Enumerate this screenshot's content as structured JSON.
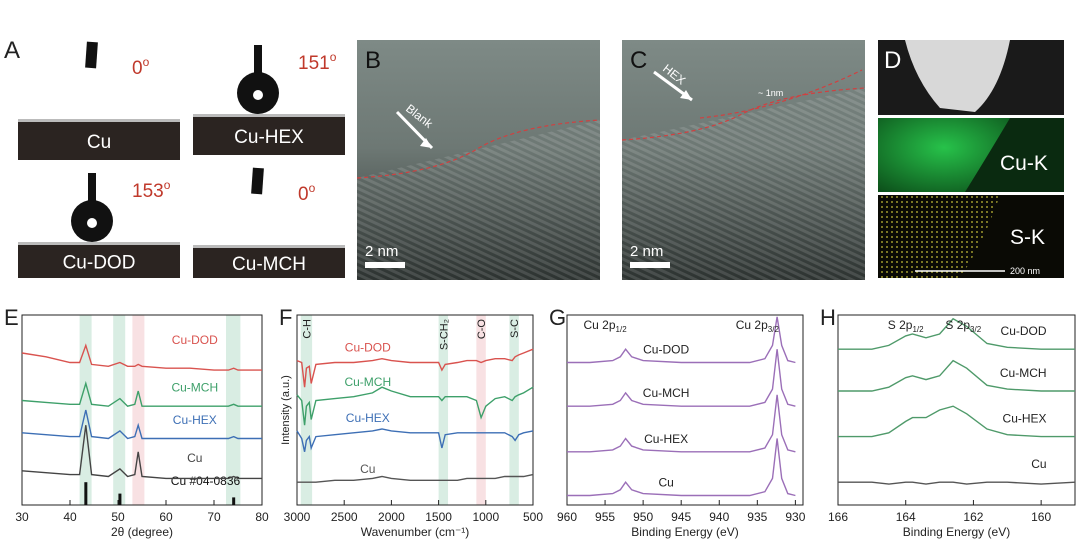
{
  "panels": {
    "A": {
      "letter": "A",
      "samples": [
        {
          "name": "Cu",
          "angle": "0",
          "unit": "o"
        },
        {
          "name": "Cu-HEX",
          "angle": "151",
          "unit": "o"
        },
        {
          "name": "Cu-DOD",
          "angle": "153",
          "unit": "o"
        },
        {
          "name": "Cu-MCH",
          "angle": "0",
          "unit": "o"
        }
      ]
    },
    "B": {
      "letter": "B",
      "arrow_label": "Blank",
      "scale_bar": "2 nm"
    },
    "C": {
      "letter": "C",
      "arrow_label": "HEX",
      "thickness": "~ 1nm",
      "scale_bar": "2 nm"
    },
    "D": {
      "letter": "D",
      "maps": [
        "Cu-K",
        "S-K"
      ],
      "scale_bar": "200 nm"
    }
  },
  "chart_data": [
    {
      "type": "line",
      "letter": "E",
      "x_label": "2θ (degree)",
      "xlim": [
        30,
        80
      ],
      "xticks": [
        30,
        40,
        50,
        60,
        70,
        80
      ],
      "ylim": [
        0,
        100
      ],
      "x": [
        30,
        35,
        40,
        42,
        43.3,
        44.5,
        48,
        50.4,
        52,
        53.5,
        54.2,
        55,
        60,
        65,
        70,
        73,
        74.1,
        75,
        80
      ],
      "series": [
        {
          "name": "Cu-DOD",
          "color": "#d9534f",
          "values": [
            80,
            78,
            75,
            75,
            84,
            74,
            73,
            75,
            73,
            73,
            74,
            73,
            72,
            72,
            71,
            71,
            72,
            71,
            71
          ]
        },
        {
          "name": "Cu-MCH",
          "color": "#3ea06a",
          "values": [
            55,
            54,
            53,
            53,
            64,
            53,
            52,
            56,
            52,
            53,
            60,
            52,
            52,
            52,
            52,
            52,
            53,
            52,
            52
          ]
        },
        {
          "name": "Cu-HEX",
          "color": "#3d6fb5",
          "values": [
            38,
            37,
            36,
            36,
            50,
            36,
            35,
            39,
            35,
            36,
            42,
            35,
            35,
            35,
            35,
            35,
            36,
            35,
            35
          ]
        },
        {
          "name": "Cu",
          "color": "#444444",
          "values": [
            18,
            17,
            16,
            16,
            42,
            16,
            15,
            19,
            15,
            16,
            28,
            15,
            14,
            14,
            14,
            14,
            15,
            14,
            14
          ]
        }
      ],
      "reference": {
        "name": "Cu #04-0836",
        "color": "#111111",
        "positions": [
          43.3,
          50.4,
          74.1
        ],
        "values": [
          12,
          6,
          4
        ]
      },
      "bands": [
        {
          "range": [
            42,
            44.5
          ],
          "color": "#cfe9dc"
        },
        {
          "range": [
            49,
            51.5
          ],
          "color": "#cfe9dc"
        },
        {
          "range": [
            53,
            55.5
          ],
          "color": "#f6d9dc"
        },
        {
          "range": [
            72.5,
            75.5
          ],
          "color": "#cfe9dc"
        }
      ]
    },
    {
      "type": "line",
      "letter": "F",
      "x_label": "Wavenumber (cm⁻¹)",
      "y_label": "Intensity (a.u.)",
      "xlim": [
        3000,
        500
      ],
      "xticks": [
        3000,
        2500,
        2000,
        1500,
        1000,
        500
      ],
      "ylim": [
        0,
        100
      ],
      "x": [
        3000,
        2950,
        2920,
        2900,
        2870,
        2850,
        2800,
        2600,
        2400,
        2200,
        2100,
        2000,
        1800,
        1600,
        1500,
        1465,
        1430,
        1300,
        1200,
        1100,
        1050,
        1000,
        900,
        800,
        720,
        690,
        650,
        600,
        500
      ],
      "series": [
        {
          "name": "Cu-DOD",
          "color": "#d9534f",
          "values": [
            76,
            75,
            62,
            72,
            73,
            64,
            74,
            75,
            75,
            76,
            77,
            76,
            75,
            75,
            75,
            71,
            74,
            75,
            76,
            76,
            75,
            76,
            77,
            77,
            76,
            78,
            79,
            80,
            82
          ]
        },
        {
          "name": "Cu-MCH",
          "color": "#3ea06a",
          "values": [
            58,
            55,
            42,
            52,
            54,
            45,
            55,
            56,
            57,
            59,
            62,
            60,
            57,
            57,
            57,
            55,
            57,
            57,
            57,
            55,
            46,
            52,
            56,
            57,
            55,
            57,
            58,
            59,
            62
          ]
        },
        {
          "name": "Cu-HEX",
          "color": "#3d6fb5",
          "values": [
            39,
            35,
            28,
            34,
            36,
            30,
            36,
            37,
            38,
            39,
            40,
            39,
            38,
            38,
            38,
            30,
            37,
            38,
            38,
            38,
            38,
            38,
            38,
            38,
            36,
            34,
            37,
            38,
            39
          ]
        },
        {
          "name": "Cu",
          "color": "#555555",
          "values": [
            12,
            12,
            12,
            12,
            12,
            12,
            12,
            13,
            13,
            14,
            15,
            14,
            13,
            13,
            13,
            13,
            13,
            13,
            14,
            14,
            14,
            14,
            14,
            15,
            15,
            15,
            15,
            15,
            16
          ]
        }
      ],
      "bands": [
        {
          "range": [
            2960,
            2840
          ],
          "color": "#cfe9dc"
        },
        {
          "range": [
            1500,
            1400
          ],
          "color": "#cfe9dc"
        },
        {
          "range": [
            1100,
            1000
          ],
          "color": "#f6d9dc"
        },
        {
          "range": [
            750,
            650
          ],
          "color": "#cfe9dc"
        }
      ],
      "annotations": [
        {
          "text": "C-H",
          "x": 2900
        },
        {
          "text": "S-CH₂",
          "x": 1450
        },
        {
          "text": "C-O",
          "x": 1050
        },
        {
          "text": "S-C",
          "x": 700
        }
      ]
    },
    {
      "type": "line",
      "letter": "G",
      "x_label": "Binding Energy (eV)",
      "xlim": [
        960,
        929
      ],
      "xticks": [
        960,
        955,
        950,
        945,
        940,
        935,
        930
      ],
      "ylim": [
        0,
        100
      ],
      "x": [
        960,
        957,
        954,
        953,
        952.3,
        951.5,
        950,
        945,
        940,
        936,
        934,
        933,
        932.4,
        931.8,
        931,
        930
      ],
      "series": [
        {
          "name": "Cu-DOD",
          "color": "#9b6fb8",
          "values": [
            75,
            75,
            76,
            78,
            82,
            78,
            76,
            75,
            75,
            75,
            77,
            84,
            99,
            84,
            76,
            75
          ]
        },
        {
          "name": "Cu-MCH",
          "color": "#9b6fb8",
          "values": [
            52,
            52,
            53,
            55,
            59,
            55,
            53,
            52,
            52,
            52,
            54,
            61,
            82,
            61,
            53,
            52
          ]
        },
        {
          "name": "Cu-HEX",
          "color": "#9b6fb8",
          "values": [
            28,
            28,
            29,
            31,
            35,
            31,
            29,
            28,
            28,
            28,
            30,
            37,
            58,
            37,
            29,
            28
          ]
        },
        {
          "name": "Cu",
          "color": "#9b6fb8",
          "values": [
            5,
            5,
            6,
            8,
            12,
            8,
            6,
            5,
            5,
            5,
            7,
            14,
            35,
            14,
            6,
            5
          ]
        }
      ],
      "annotations": [
        {
          "text": "Cu 2p",
          "sub": "1/2",
          "x": 955
        },
        {
          "text": "Cu 2p",
          "sub": "3/2",
          "x": 935
        }
      ]
    },
    {
      "type": "line",
      "letter": "H",
      "x_label": "Binding Energy (eV)",
      "xlim": [
        166,
        159
      ],
      "xticks": [
        166,
        164,
        162,
        160
      ],
      "ylim": [
        0,
        100
      ],
      "x": [
        166,
        165,
        164.5,
        164,
        163.8,
        163.4,
        163,
        162.6,
        162.2,
        161.6,
        161,
        160,
        159
      ],
      "series": [
        {
          "name": "Cu-DOD",
          "color": "#4f9a6a",
          "values": [
            82,
            82,
            84,
            89,
            90,
            88,
            90,
            98,
            94,
            85,
            83,
            82,
            82
          ]
        },
        {
          "name": "Cu-MCH",
          "color": "#4f9a6a",
          "values": [
            60,
            60,
            62,
            67,
            68,
            66,
            68,
            76,
            72,
            63,
            61,
            60,
            60
          ]
        },
        {
          "name": "Cu-HEX",
          "color": "#4f9a6a",
          "values": [
            36,
            36,
            38,
            44,
            46,
            46,
            50,
            52,
            48,
            40,
            37,
            36,
            36
          ]
        },
        {
          "name": "Cu",
          "color": "#555555",
          "values": [
            12,
            12,
            11,
            12,
            12,
            11,
            12,
            12,
            11,
            12,
            12,
            11,
            12
          ]
        }
      ],
      "annotations": [
        {
          "text": "S 2p",
          "sub": "1/2",
          "x": 164
        },
        {
          "text": "S 2p",
          "sub": "3/2",
          "x": 162.3
        }
      ]
    }
  ]
}
